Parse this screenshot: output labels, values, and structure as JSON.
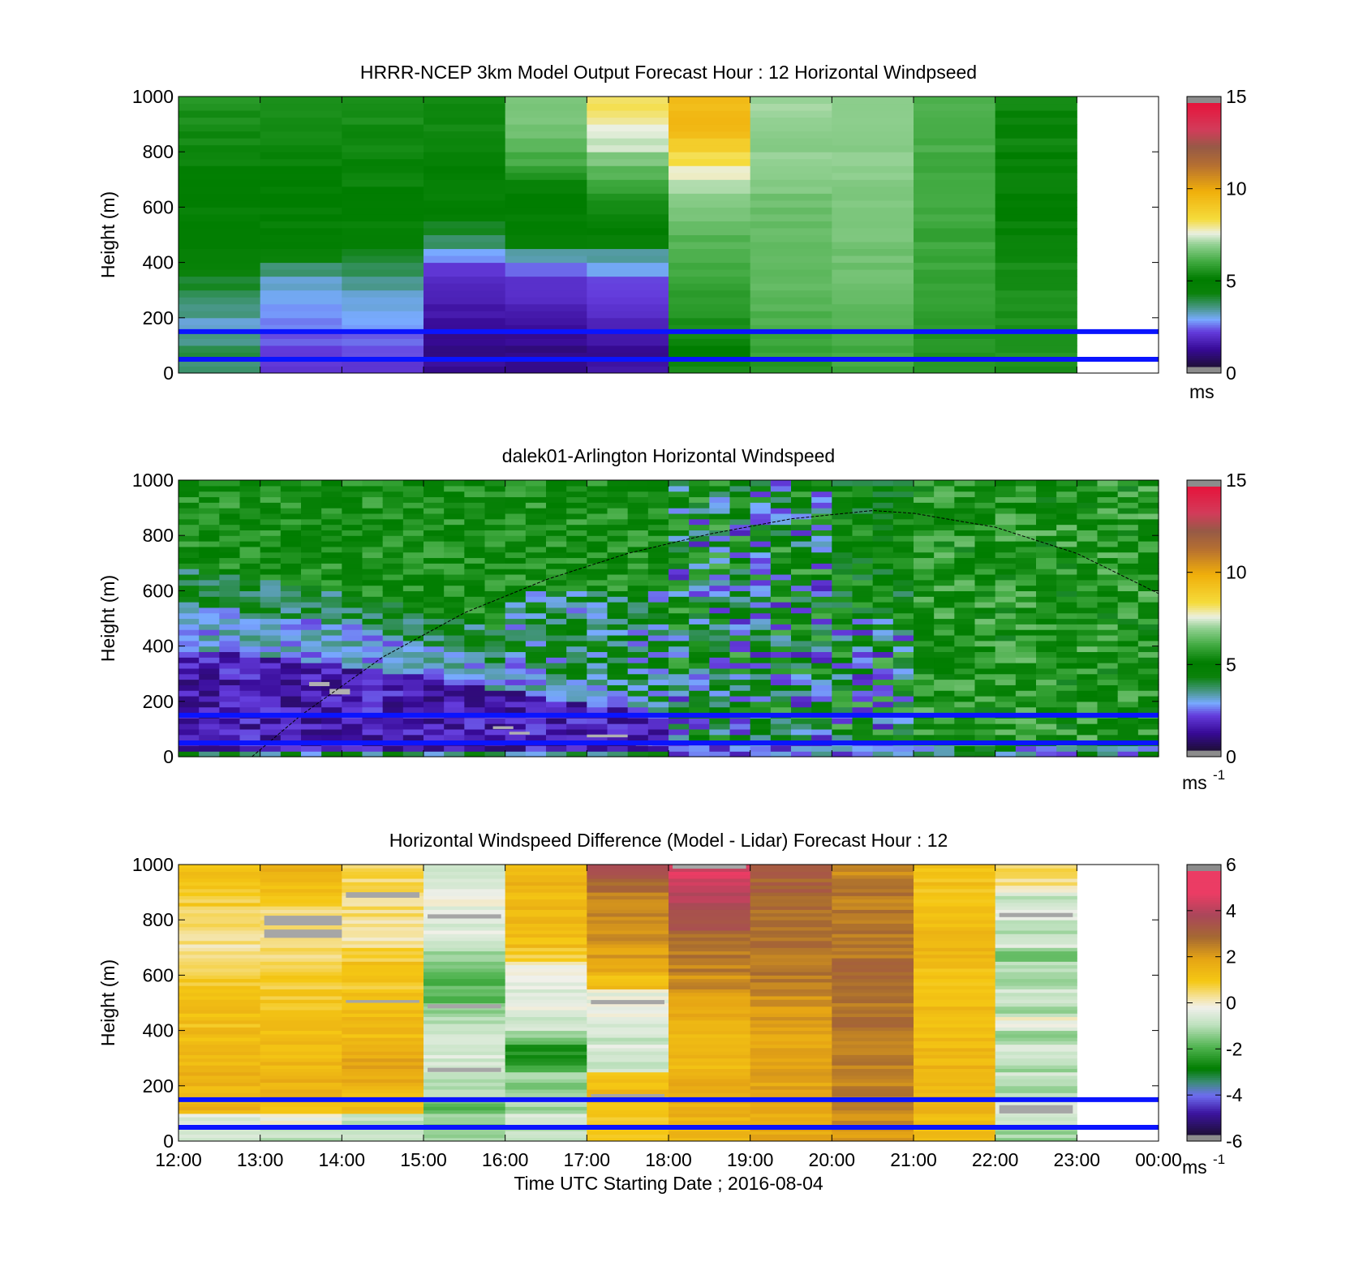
{
  "page": {
    "xlabel": "Time UTC  Starting Date ; 2016-08-04"
  },
  "x_ticks": [
    "12:00",
    "13:00",
    "14:00",
    "15:00",
    "16:00",
    "17:00",
    "18:00",
    "19:00",
    "20:00",
    "21:00",
    "22:00",
    "23:00",
    "00:00"
  ],
  "chart_data": [
    {
      "type": "heatmap",
      "title": "HRRR-NCEP 3km Model Output   Forecast Hour : 12 Horizontal Windpseed",
      "ylabel": "Height (m)",
      "xlim_hours": [
        12,
        24
      ],
      "ylim": [
        0,
        1000
      ],
      "y_ticks": [
        0,
        200,
        400,
        600,
        800,
        1000
      ],
      "colorbar": {
        "ticks": [
          0,
          5,
          10,
          15
        ],
        "range": [
          0,
          15
        ],
        "unit": "ms"
      },
      "reference_lines_m": [
        50,
        150
      ],
      "reference_line_color": "#0a14ff",
      "x_columns_hours": [
        12,
        13,
        14,
        15,
        16,
        17,
        18,
        19,
        20,
        21,
        22
      ],
      "y_levels_m": [
        25,
        75,
        125,
        175,
        225,
        275,
        325,
        375,
        425,
        475,
        525,
        575,
        625,
        675,
        725,
        775,
        825,
        875,
        925,
        975
      ],
      "values_ms": [
        [
          3.5,
          1.8,
          1.8,
          1.0,
          0.8,
          1.2,
          5.3,
          5.6,
          6.0,
          5.5,
          5.5
        ],
        [
          3.8,
          2.0,
          2.0,
          0.8,
          0.8,
          1.0,
          5.0,
          5.8,
          6.0,
          5.5,
          5.5
        ],
        [
          3.3,
          2.2,
          2.3,
          0.9,
          1.0,
          1.3,
          5.2,
          6.0,
          6.2,
          5.6,
          5.5
        ],
        [
          3.0,
          2.4,
          2.6,
          1.0,
          1.2,
          1.5,
          5.4,
          6.1,
          6.3,
          5.6,
          5.5
        ],
        [
          3.4,
          2.5,
          2.8,
          1.2,
          1.4,
          1.7,
          5.6,
          6.2,
          6.4,
          5.7,
          5.4
        ],
        [
          3.6,
          2.8,
          3.0,
          1.4,
          1.6,
          1.9,
          5.8,
          6.3,
          6.4,
          5.8,
          5.4
        ],
        [
          4.0,
          3.0,
          3.3,
          1.6,
          1.8,
          2.1,
          5.9,
          6.3,
          6.5,
          5.8,
          5.3
        ],
        [
          4.3,
          3.6,
          3.7,
          2.0,
          2.4,
          2.7,
          6.0,
          6.4,
          6.5,
          5.9,
          5.3
        ],
        [
          4.6,
          4.2,
          4.0,
          2.6,
          3.2,
          3.2,
          6.1,
          6.5,
          6.6,
          5.9,
          5.2
        ],
        [
          4.8,
          4.8,
          4.7,
          3.6,
          4.4,
          4.4,
          6.2,
          6.5,
          6.6,
          5.9,
          5.2
        ],
        [
          4.9,
          5.0,
          5.0,
          4.0,
          4.8,
          5.0,
          6.4,
          6.5,
          6.6,
          5.9,
          5.1
        ],
        [
          5.0,
          5.0,
          5.0,
          4.8,
          5.0,
          5.2,
          6.6,
          6.5,
          6.6,
          6.0,
          5.1
        ],
        [
          5.0,
          5.0,
          5.0,
          5.0,
          5.1,
          5.4,
          6.8,
          6.6,
          6.7,
          6.0,
          5.1
        ],
        [
          5.0,
          5.0,
          5.1,
          5.0,
          5.2,
          5.8,
          7.2,
          6.7,
          6.7,
          6.0,
          5.1
        ],
        [
          5.1,
          5.0,
          5.1,
          5.1,
          5.6,
          6.2,
          7.6,
          6.8,
          6.8,
          6.0,
          5.1
        ],
        [
          5.2,
          5.1,
          5.2,
          5.2,
          6.0,
          6.8,
          8.3,
          6.9,
          6.9,
          6.0,
          5.1
        ],
        [
          5.3,
          5.2,
          5.3,
          5.3,
          6.3,
          7.4,
          9.0,
          6.9,
          6.9,
          6.1,
          5.2
        ],
        [
          5.3,
          5.3,
          5.3,
          5.3,
          6.5,
          7.6,
          9.6,
          7.0,
          6.9,
          6.1,
          5.2
        ],
        [
          5.4,
          5.3,
          5.4,
          5.3,
          6.6,
          8.0,
          9.8,
          7.0,
          6.9,
          6.1,
          5.2
        ],
        [
          5.5,
          5.3,
          5.4,
          5.3,
          6.7,
          8.2,
          9.5,
          7.0,
          6.9,
          6.1,
          5.2
        ]
      ]
    },
    {
      "type": "heatmap",
      "title": "dalek01-Arlington  Horizontal Windspeed",
      "ylabel": "Height (m)",
      "xlim_hours": [
        12,
        24
      ],
      "ylim": [
        0,
        1000
      ],
      "y_ticks": [
        0,
        200,
        400,
        600,
        800,
        1000
      ],
      "colorbar": {
        "ticks": [
          0,
          5,
          10,
          15
        ],
        "range": [
          0,
          15
        ],
        "unit": "ms",
        "unit_exp": "-1"
      },
      "reference_lines_m": [
        50,
        150
      ],
      "reference_line_color": "#0a14ff",
      "data_extent_hours": [
        12,
        23.85
      ],
      "boundary_layer_height_curve": [
        [
          12.9,
          0
        ],
        [
          13.5,
          150
        ],
        [
          14.5,
          360
        ],
        [
          15.5,
          520
        ],
        [
          16.5,
          640
        ],
        [
          17.5,
          735
        ],
        [
          18.5,
          805
        ],
        [
          19.5,
          860
        ],
        [
          20.5,
          890
        ],
        [
          21.0,
          880
        ],
        [
          22.0,
          830
        ],
        [
          23.0,
          735
        ],
        [
          24.0,
          590
        ]
      ],
      "approximate_structure": "Low-level jet below ~400 m rising to ~800 m (1-3 m/s) until 18:00; green 4-6 m/s above; mixed 2-6 m/s after 18:00"
    },
    {
      "type": "heatmap",
      "title": "Horizontal Windspeed Difference (Model - Lidar) Forecast Hour : 12",
      "ylabel": "Height (m)",
      "xlim_hours": [
        12,
        24
      ],
      "ylim": [
        0,
        1000
      ],
      "y_ticks": [
        0,
        200,
        400,
        600,
        800,
        1000
      ],
      "colorbar": {
        "ticks": [
          -6,
          -4,
          -2,
          0,
          2,
          4,
          6
        ],
        "range": [
          -6,
          6
        ],
        "unit": "ms",
        "unit_exp": "-1"
      },
      "reference_lines_m": [
        50,
        150
      ],
      "reference_line_color": "#0a14ff",
      "x_columns_hours": [
        12,
        13,
        14,
        15,
        16,
        17,
        18,
        19,
        20,
        21,
        22
      ],
      "y_levels_m": [
        25,
        75,
        125,
        175,
        225,
        275,
        325,
        375,
        425,
        475,
        525,
        575,
        625,
        675,
        725,
        775,
        825,
        875,
        925,
        975
      ],
      "values_ms": [
        [
          -0.8,
          -1.0,
          -0.6,
          -1.2,
          -1.0,
          0.8,
          1.5,
          1.8,
          2.3,
          1.2,
          -1.3
        ],
        [
          -0.5,
          -0.3,
          -0.9,
          -1.4,
          -0.5,
          1.0,
          1.6,
          1.8,
          2.4,
          1.4,
          -0.6
        ],
        [
          1.6,
          1.3,
          1.3,
          -1.8,
          -1.2,
          1.2,
          1.7,
          1.9,
          2.5,
          1.5,
          -0.4
        ],
        [
          1.4,
          1.5,
          1.4,
          -1.0,
          -1.5,
          1.3,
          1.8,
          2.0,
          2.6,
          1.6,
          -1.2
        ],
        [
          1.6,
          1.6,
          1.8,
          -0.9,
          -1.4,
          1.0,
          1.7,
          2.0,
          2.6,
          1.4,
          -0.8
        ],
        [
          1.5,
          1.5,
          1.9,
          -0.8,
          -2.4,
          -0.8,
          1.5,
          2.0,
          2.7,
          1.5,
          -1.2
        ],
        [
          1.4,
          1.4,
          1.6,
          -0.6,
          -2.6,
          -0.6,
          1.4,
          1.9,
          2.7,
          1.4,
          -0.6
        ],
        [
          1.3,
          1.3,
          1.3,
          -0.6,
          -1.6,
          -0.8,
          1.4,
          2.0,
          2.8,
          1.4,
          -1.4
        ],
        [
          1.2,
          1.2,
          1.3,
          -1.0,
          -0.6,
          -0.5,
          1.6,
          2.2,
          2.8,
          1.3,
          -0.2
        ],
        [
          1.2,
          1.1,
          1.4,
          -1.4,
          -0.4,
          -0.4,
          1.8,
          2.2,
          2.8,
          1.3,
          -1.2
        ],
        [
          1.1,
          1.0,
          1.3,
          -1.8,
          -0.6,
          -0.3,
          2.0,
          2.4,
          2.8,
          1.2,
          -0.8
        ],
        [
          1.0,
          0.9,
          1.0,
          -2.0,
          -0.2,
          1.2,
          2.4,
          2.6,
          2.9,
          1.1,
          -1.4
        ],
        [
          0.5,
          0.6,
          1.3,
          -1.6,
          -0.1,
          1.8,
          2.6,
          2.7,
          2.9,
          1.2,
          -1.0
        ],
        [
          0.3,
          0.4,
          0.9,
          -1.2,
          0.8,
          2.1,
          2.8,
          2.8,
          2.8,
          1.4,
          -1.6
        ],
        [
          0.3,
          0.3,
          0.3,
          -0.8,
          1.3,
          2.3,
          3.0,
          2.8,
          2.8,
          1.6,
          -0.6
        ],
        [
          0.4,
          0.4,
          0.4,
          -0.5,
          1.4,
          2.4,
          3.5,
          2.9,
          2.8,
          1.4,
          -1.2
        ],
        [
          0.6,
          0.6,
          0.5,
          -0.4,
          1.4,
          2.5,
          3.9,
          3.0,
          2.7,
          1.3,
          -0.3
        ],
        [
          0.8,
          0.9,
          0.4,
          -0.3,
          1.4,
          2.6,
          4.2,
          3.1,
          2.7,
          1.3,
          -0.8
        ],
        [
          1.0,
          1.2,
          0.5,
          -0.4,
          1.5,
          3.0,
          4.7,
          3.2,
          2.6,
          1.2,
          0.3
        ],
        [
          1.2,
          1.5,
          0.6,
          -0.5,
          1.5,
          3.5,
          4.8,
          3.3,
          2.5,
          1.1,
          0.6
        ]
      ]
    }
  ]
}
